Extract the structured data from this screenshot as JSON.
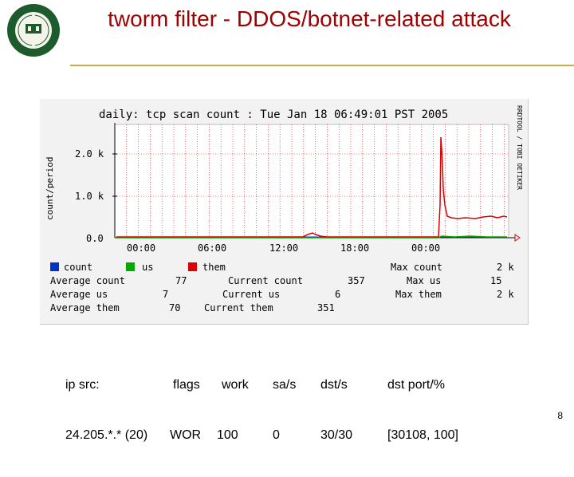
{
  "slide": {
    "title": "tworm filter - DDOS/botnet-related attack",
    "page_number": "8",
    "seal": {
      "text": "PORTLAND STATE UNIVERSITY",
      "year": "1946",
      "motto": "DOCTRINA URBI SERVIAT"
    }
  },
  "graph": {
    "title": "daily: tcp scan count   : Tue Jan 18 06:49:01 PST 2005",
    "ylabel": "count/period",
    "side_label": "RRDTOOL / TOBI OETIKER",
    "yticks": [
      "2.0 k",
      "1.0 k",
      "0.0"
    ],
    "xticks": [
      "00:00",
      "06:00",
      "12:00",
      "18:00",
      "00:00"
    ],
    "legend": {
      "count": "count",
      "us": "us",
      "them": "them",
      "max_count": "Max count",
      "max_count_val": "2 k"
    },
    "stats": {
      "avg_count_label": "Average count",
      "avg_count_val": "77",
      "cur_count_label": "Current count",
      "cur_count_val": "357",
      "max_us_label": "Max us",
      "max_us_val": "15",
      "avg_us_label": "Average us",
      "avg_us_val": "7",
      "cur_us_label": "Current us",
      "cur_us_val": "6",
      "max_them_label": "Max them",
      "max_them_val": "2 k",
      "avg_them_label": "Average them",
      "avg_them_val": "70",
      "cur_them_label": "Current them",
      "cur_them_val": "351"
    },
    "colors": {
      "count": "#0033cc",
      "us": "#00aa00",
      "them": "#dd0000",
      "grid": "#ff0000"
    }
  },
  "table": {
    "headers": {
      "ip_src": "ip src:",
      "flags": "flags",
      "work": "work",
      "sas": "sa/s",
      "dsts": "dst/s",
      "dstport": "dst port/%"
    },
    "row": {
      "ip_src": "24.205.*.* (20)",
      "flags": "WOR",
      "work": "100",
      "sas": "0",
      "dsts": "30/30",
      "dstport": "[30108, 100]"
    }
  }
}
